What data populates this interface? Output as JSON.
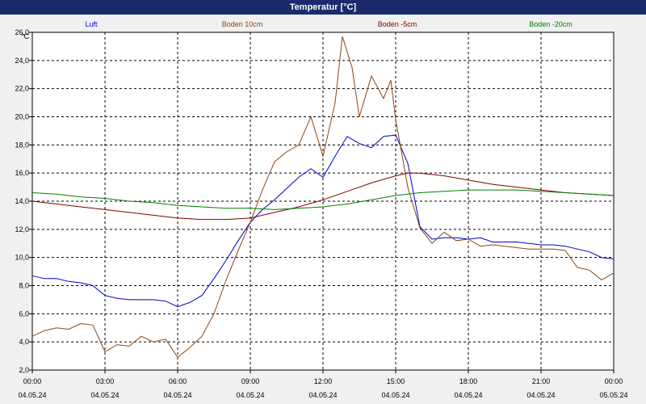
{
  "window": {
    "title": "Temperatur [°C]"
  },
  "chart_data": {
    "type": "line",
    "ylabel": "°C",
    "ylim": [
      2.0,
      26.0
    ],
    "yticks": [
      2.0,
      4.0,
      6.0,
      8.0,
      10.0,
      12.0,
      14.0,
      16.0,
      18.0,
      20.0,
      22.0,
      24.0,
      26.0
    ],
    "xlim": [
      0,
      24
    ],
    "xticks": [
      {
        "hour": 0,
        "time": "00:00",
        "date": "04.05.24"
      },
      {
        "hour": 3,
        "time": "03:00",
        "date": "04.05.24"
      },
      {
        "hour": 6,
        "time": "06:00",
        "date": "04.05.24"
      },
      {
        "hour": 9,
        "time": "09:00",
        "date": "04.05.24"
      },
      {
        "hour": 12,
        "time": "12:00",
        "date": "04.05.24"
      },
      {
        "hour": 15,
        "time": "15:00",
        "date": "04.05.24"
      },
      {
        "hour": 18,
        "time": "18:00",
        "date": "04.05.24"
      },
      {
        "hour": 21,
        "time": "21:00",
        "date": "04.05.24"
      },
      {
        "hour": 24,
        "time": "00:00",
        "date": "05.05.24"
      }
    ],
    "grid": true,
    "legend_position": "top",
    "series": [
      {
        "name": "Luft",
        "color": "#0000cc",
        "x": [
          0,
          0.5,
          1,
          1.5,
          2,
          2.5,
          3,
          3.5,
          4,
          4.5,
          5,
          5.5,
          6,
          6.5,
          7,
          7.5,
          8,
          8.5,
          9,
          9.5,
          10,
          10.5,
          11,
          11.5,
          12,
          12.5,
          13,
          13.5,
          14,
          14.5,
          15,
          15.5,
          16,
          16.5,
          17,
          17.5,
          18,
          18.5,
          19,
          19.5,
          20,
          20.5,
          21,
          21.5,
          22,
          22.5,
          23,
          23.5,
          24
        ],
        "y": [
          8.7,
          8.5,
          8.5,
          8.3,
          8.2,
          8.0,
          7.3,
          7.1,
          7.0,
          7.0,
          7.0,
          6.9,
          6.5,
          6.8,
          7.3,
          8.5,
          9.8,
          11.2,
          12.5,
          13.4,
          14.1,
          14.9,
          15.7,
          16.3,
          15.7,
          17.2,
          18.6,
          18.1,
          17.8,
          18.6,
          18.7,
          16.7,
          12.2,
          11.3,
          11.4,
          11.4,
          11.3,
          11.4,
          11.1,
          11.1,
          11.1,
          11.0,
          10.9,
          10.9,
          10.8,
          10.6,
          10.4,
          10.0,
          9.9
        ]
      },
      {
        "name": "Boden 10cm",
        "color": "#8b4513",
        "x": [
          0,
          0.5,
          1,
          1.5,
          2,
          2.5,
          3,
          3.5,
          4,
          4.5,
          5,
          5.5,
          6,
          6.5,
          7,
          7.5,
          8,
          8.5,
          9,
          9.5,
          10,
          10.5,
          11,
          11.5,
          12,
          12.5,
          12.8,
          13.2,
          13.5,
          14,
          14.5,
          14.8,
          15,
          15.5,
          16,
          16.5,
          17,
          17.5,
          18,
          18.5,
          19,
          19.5,
          20,
          20.5,
          21,
          21.5,
          22,
          22.5,
          23,
          23.5,
          24
        ],
        "y": [
          4.4,
          4.8,
          5.0,
          4.9,
          5.3,
          5.2,
          3.3,
          3.8,
          3.7,
          4.4,
          4.0,
          4.2,
          2.9,
          3.6,
          4.4,
          6.0,
          8.4,
          10.5,
          12.5,
          14.8,
          16.8,
          17.5,
          18.0,
          20.0,
          17.2,
          21.0,
          25.7,
          23.5,
          20.0,
          22.9,
          21.3,
          22.6,
          19.8,
          15.0,
          12.1,
          11.0,
          11.8,
          11.2,
          11.3,
          10.8,
          10.9,
          10.8,
          10.7,
          10.6,
          10.6,
          10.6,
          10.5,
          9.3,
          9.1,
          8.4,
          8.9
        ]
      },
      {
        "name": "Boden -5cm",
        "color": "#800000",
        "x": [
          0,
          1,
          2,
          3,
          4,
          5,
          6,
          7,
          8,
          9,
          10,
          11,
          12,
          13,
          14,
          15,
          15.5,
          16,
          17,
          18,
          19,
          20,
          21,
          22,
          23,
          24
        ],
        "y": [
          14.0,
          13.8,
          13.6,
          13.4,
          13.2,
          13.0,
          12.8,
          12.7,
          12.7,
          12.8,
          13.2,
          13.6,
          14.1,
          14.7,
          15.3,
          15.8,
          16.0,
          16.0,
          15.8,
          15.5,
          15.2,
          15.0,
          14.8,
          14.6,
          14.5,
          14.4
        ]
      },
      {
        "name": "Boden -20cm",
        "color": "#008000",
        "x": [
          0,
          1,
          2,
          3,
          4,
          5,
          6,
          7,
          8,
          9,
          10,
          11,
          12,
          13,
          14,
          15,
          16,
          17,
          18,
          19,
          20,
          21,
          22,
          23,
          24
        ],
        "y": [
          14.6,
          14.5,
          14.3,
          14.2,
          14.0,
          13.9,
          13.7,
          13.6,
          13.5,
          13.5,
          13.4,
          13.5,
          13.6,
          13.8,
          14.1,
          14.4,
          14.6,
          14.7,
          14.8,
          14.8,
          14.8,
          14.7,
          14.6,
          14.5,
          14.4
        ]
      }
    ]
  }
}
